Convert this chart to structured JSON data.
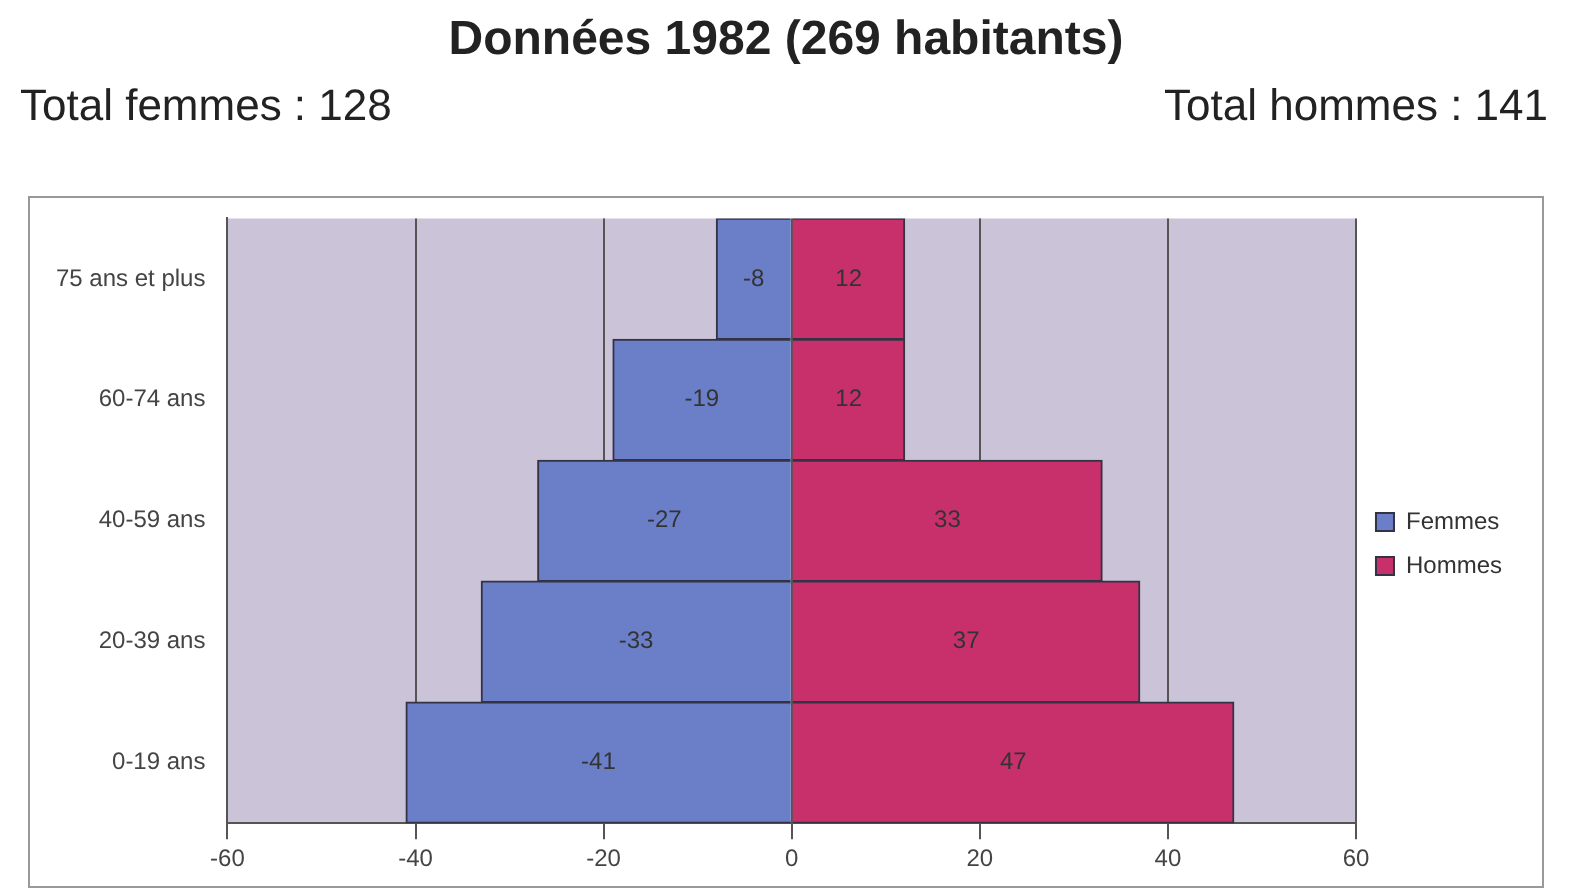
{
  "chart_data": {
    "type": "bar",
    "orientation": "horizontal",
    "stacked": true,
    "title": "Données 1982 (269 habitants)",
    "annotations": [
      "Total femmes : 128",
      "Total hommes : 141"
    ],
    "categories": [
      "75 ans et plus",
      "60-74 ans",
      "40-59 ans",
      "20-39 ans",
      "0-19 ans"
    ],
    "series": [
      {
        "name": "Femmes",
        "color": "#6b7fc9",
        "values": [
          -8,
          -19,
          -27,
          -33,
          -41
        ]
      },
      {
        "name": "Hommes",
        "color": "#c8306c",
        "values": [
          12,
          12,
          33,
          37,
          47
        ]
      }
    ],
    "xlim": [
      -60,
      60
    ],
    "xticks": [
      -60,
      -40,
      -20,
      0,
      20,
      40,
      60
    ],
    "grid": "x",
    "legend": "right",
    "data_labels": true
  }
}
